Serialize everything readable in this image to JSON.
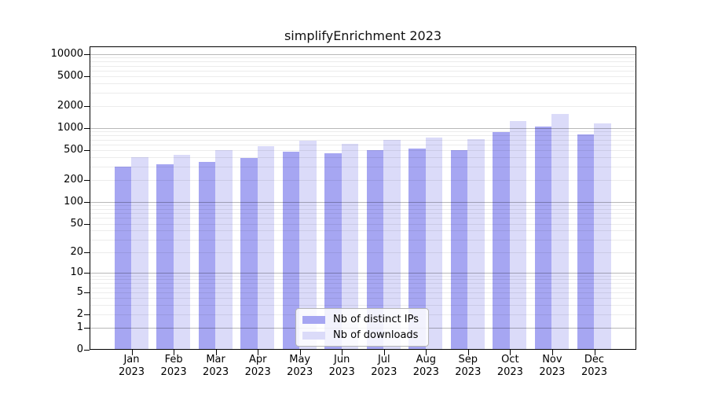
{
  "figure": {
    "title": "simplifyEnrichment 2023"
  },
  "chart_data": {
    "type": "bar",
    "title": "simplifyEnrichment 2023",
    "categories": [
      "Jan 2023",
      "Feb 2023",
      "Mar 2023",
      "Apr 2023",
      "May 2023",
      "Jun 2023",
      "Jul 2023",
      "Aug 2023",
      "Sep 2023",
      "Oct 2023",
      "Nov 2023",
      "Dec 2023"
    ],
    "series": [
      {
        "name": "Nb of distinct IPs",
        "color": "#a6a6f2",
        "values": [
          300,
          325,
          350,
          390,
          475,
          455,
          505,
          535,
          505,
          885,
          1040,
          820
        ]
      },
      {
        "name": "Nb of downloads",
        "color": "#dbdbf9",
        "values": [
          400,
          435,
          505,
          570,
          675,
          620,
          700,
          740,
          705,
          1250,
          1540,
          1150
        ]
      }
    ],
    "yscale": "log1p",
    "ylim": [
      0,
      10000
    ],
    "yticks": [
      0,
      1,
      2,
      5,
      10,
      20,
      50,
      100,
      200,
      500,
      1000,
      2000,
      5000,
      10000
    ],
    "grid": true,
    "legend": {
      "position": "bottom-center",
      "entries": [
        "Nb of distinct IPs",
        "Nb of downloads"
      ]
    }
  }
}
